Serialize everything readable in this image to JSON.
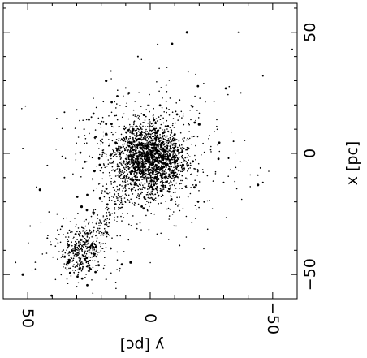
{
  "chart_data": {
    "type": "scatter",
    "rotated": "90deg-clockwise",
    "title": "",
    "xlabel": "x [pc]",
    "ylabel": "y [pc]",
    "xlim": [
      -60,
      62
    ],
    "ylim": [
      -60,
      60
    ],
    "x_ticks": [
      {
        "value": -50,
        "label": "−50"
      },
      {
        "value": 0,
        "label": "0"
      },
      {
        "value": 50,
        "label": "50"
      }
    ],
    "y_ticks": [
      {
        "value": 50,
        "label": "50"
      },
      {
        "value": 0,
        "label": "0"
      },
      {
        "value": -50,
        "label": "−50"
      }
    ],
    "grid": false,
    "legend": "none",
    "marker_color": "#000000",
    "clusters": [
      {
        "x_center": -2,
        "y_center": 0,
        "x_spread": 7,
        "y_spread": 7,
        "count": 2300
      },
      {
        "x_center": -40,
        "y_center": 28,
        "x_spread": 4,
        "y_spread": 4,
        "count": 420
      }
    ],
    "outliers": [
      {
        "x": 50,
        "y": -15
      },
      {
        "x": 50,
        "y": -36
      },
      {
        "x": 43,
        "y": -58
      },
      {
        "x": 22,
        "y": -12
      },
      {
        "x": 25,
        "y": -37
      },
      {
        "x": 30,
        "y": 18
      },
      {
        "x": 34,
        "y": 16
      },
      {
        "x": 27,
        "y": 10
      },
      {
        "x": 17,
        "y": 35
      },
      {
        "x": 10,
        "y": 27
      },
      {
        "x": 8,
        "y": 18
      },
      {
        "x": 5,
        "y": -34
      },
      {
        "x": -6,
        "y": -45
      },
      {
        "x": -9,
        "y": -44
      },
      {
        "x": -12,
        "y": -46
      },
      {
        "x": -13,
        "y": -44
      },
      {
        "x": -2,
        "y": -32
      },
      {
        "x": 2,
        "y": 52
      },
      {
        "x": -5,
        "y": 42
      },
      {
        "x": -10,
        "y": 35
      },
      {
        "x": -15,
        "y": 45
      },
      {
        "x": -25,
        "y": 38
      },
      {
        "x": -30,
        "y": 49
      },
      {
        "x": -35,
        "y": 42
      },
      {
        "x": -45,
        "y": 55
      },
      {
        "x": -50,
        "y": 52
      },
      {
        "x": -33,
        "y": 19
      },
      {
        "x": -29,
        "y": 22
      },
      {
        "x": -55,
        "y": 30
      },
      {
        "x": -52,
        "y": 18
      },
      {
        "x": -45,
        "y": 8
      },
      {
        "x": -38,
        "y": -12
      },
      {
        "x": -20,
        "y": -22
      },
      {
        "x": -12,
        "y": -30
      },
      {
        "x": 15,
        "y": 24
      },
      {
        "x": 12,
        "y": -20
      },
      {
        "x": 40,
        "y": 5
      },
      {
        "x": 45,
        "y": -3
      },
      {
        "x": 32,
        "y": -46
      },
      {
        "x": -48,
        "y": 34
      },
      {
        "x": -22,
        "y": 28
      },
      {
        "x": 18,
        "y": 30
      }
    ],
    "bridge": {
      "from": [
        -36,
        25
      ],
      "to": [
        -10,
        6
      ],
      "count": 160,
      "spread": 3
    }
  }
}
